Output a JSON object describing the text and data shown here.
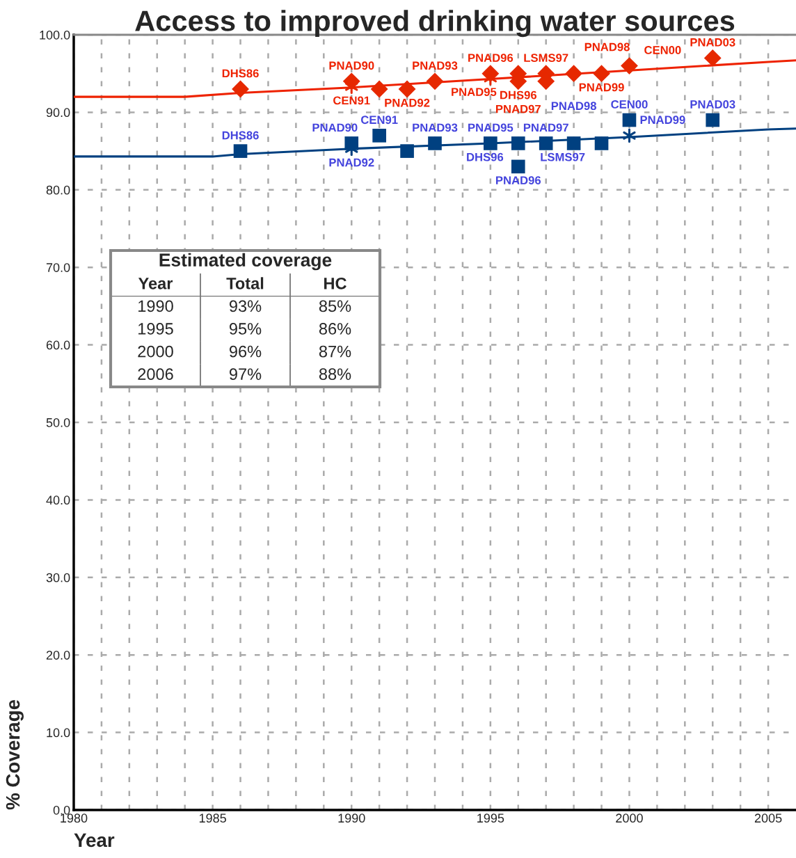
{
  "chart_data": {
    "type": "scatter",
    "title": "Access to improved drinking water sources",
    "xlabel": "Year",
    "ylabel": "% Coverage",
    "xlim": [
      1980,
      2006
    ],
    "xticks": [
      1980,
      {
        "value": 1981,
        "label": null
      },
      {
        "value": 1982,
        "label": null
      },
      {
        "value": 1983,
        "label": null
      },
      {
        "value": 1984,
        "label": null
      },
      1985,
      {
        "value": 1986,
        "label": null
      },
      {
        "value": 1987,
        "label": null
      },
      {
        "value": 1988,
        "label": null
      },
      {
        "value": 1989,
        "label": null
      },
      1990,
      {
        "value": 1991,
        "label": null
      },
      {
        "value": 1992,
        "label": null
      },
      {
        "value": 1993,
        "label": null
      },
      {
        "value": 1994,
        "label": null
      },
      1995,
      {
        "value": 1996,
        "label": null
      },
      {
        "value": 1997,
        "label": null
      },
      {
        "value": 1998,
        "label": null
      },
      {
        "value": 1999,
        "label": null
      },
      2000,
      {
        "value": 2001,
        "label": null
      },
      {
        "value": 2002,
        "label": null
      },
      {
        "value": 2003,
        "label": null
      },
      {
        "value": 2004,
        "label": null
      },
      2005
    ],
    "ylim": [
      0,
      100
    ],
    "yticks": [
      {
        "value": 0,
        "label": "0.0"
      },
      {
        "value": 10,
        "label": "10.0"
      },
      {
        "value": 20,
        "label": "20.0"
      },
      {
        "value": 30,
        "label": "30.0"
      },
      {
        "value": 40,
        "label": "40.0"
      },
      {
        "value": 50,
        "label": "50.0"
      },
      {
        "value": 60,
        "label": "60.0"
      },
      {
        "value": 70,
        "label": "70.0"
      },
      {
        "value": 80,
        "label": "80.0"
      },
      {
        "value": 90,
        "label": "90.0"
      },
      {
        "value": 100,
        "label": "100.0"
      }
    ],
    "grid": true,
    "series": [
      {
        "type": "line",
        "color": "#ee2200",
        "marker": "none",
        "x": [
          1980,
          1984,
          1986,
          1990,
          1995,
          2000,
          2005,
          2006
        ],
        "values": [
          92.0,
          92.0,
          92.5,
          93.2,
          94.3,
          95.4,
          96.5,
          96.7
        ]
      },
      {
        "type": "line",
        "color": "#004080",
        "marker": "none",
        "x": [
          1980,
          1985,
          1986,
          1990,
          1995,
          2000,
          2005,
          2006
        ],
        "values": [
          84.3,
          84.3,
          84.6,
          85.3,
          86.0,
          86.8,
          87.8,
          87.9
        ]
      },
      {
        "color": "#e62800",
        "marker": "diamond",
        "x": [
          1986,
          1990,
          1991,
          1992,
          1993,
          1995,
          1996,
          1996,
          1997,
          1997,
          1998,
          1999,
          2000,
          2003
        ],
        "values": [
          93,
          94,
          93,
          93,
          94,
          95,
          95,
          94,
          95,
          94,
          95,
          95,
          96,
          97
        ]
      },
      {
        "color": "#004080",
        "marker": "square",
        "x": [
          1986,
          1990,
          1991,
          1992,
          1993,
          1995,
          1996,
          1996,
          1997,
          1998,
          1999,
          2000,
          2003
        ],
        "values": [
          85,
          86,
          87,
          85,
          86,
          86,
          86,
          83,
          86,
          86,
          86,
          89,
          89
        ]
      },
      {
        "color": "#e62800",
        "marker": "cross",
        "x": [
          1990,
          1995
        ],
        "values": [
          93.3,
          94.4
        ]
      },
      {
        "color": "#004080",
        "marker": "cross",
        "x": [
          1990,
          2000
        ],
        "values": [
          85.3,
          87.0
        ]
      }
    ],
    "annotations": [
      {
        "text": "DHS86",
        "x": 1986,
        "y": 93
      },
      {
        "text": "PNAD90",
        "x": 1990,
        "y": 94
      },
      {
        "text": "PNAD93",
        "x": 1993,
        "y": 94
      },
      {
        "text": "PNAD96",
        "x": 1995,
        "y": 95
      },
      {
        "text": "LSMS97",
        "x": 1997,
        "y": 95
      },
      {
        "text": "PNAD99",
        "x": 1999,
        "y": 95
      },
      {
        "text": "DHS86",
        "x": 1986,
        "y": 85
      },
      {
        "text": "PNAD90",
        "x": 1990,
        "y": 86
      },
      {
        "text": "CEN91",
        "x": 1991,
        "y": 87
      },
      {
        "text": "PNAD95",
        "x": 1995,
        "y": 86
      },
      {
        "text": "PNAD97",
        "x": 1997,
        "y": 86
      },
      {
        "text": "LSMS97",
        "x": 1997,
        "y": 86
      },
      {
        "text": "CEN00",
        "x": 2000,
        "y": 89
      },
      {
        "text": "CEN91",
        "x": 1990,
        "y": 93.3
      },
      {
        "text": "PNAD92",
        "x": 1992,
        "y": 93
      },
      {
        "text": "DHS96",
        "x": 1996,
        "y": 94
      },
      {
        "text": "PNAD98",
        "x": 1998,
        "y": 95
      },
      {
        "text": "CEN00",
        "x": 2000,
        "y": 96
      },
      {
        "text": "PNAD03",
        "x": 2003,
        "y": 97
      },
      {
        "text": "PNAD92",
        "x": 1990,
        "y": 85.3
      },
      {
        "text": "PNAD93",
        "x": 1993,
        "y": 86
      },
      {
        "text": "PNAD96",
        "x": 1996,
        "y": 83
      },
      {
        "text": "DHS96",
        "x": 1996,
        "y": 86
      },
      {
        "text": "PNAD98",
        "x": 1998,
        "y": 86
      },
      {
        "text": "PNAD99",
        "x": 2000,
        "y": 87.0
      },
      {
        "text": "PNAD03",
        "x": 2003,
        "y": 89
      },
      {
        "text": "PNAD97",
        "x": 1996,
        "y": 95
      },
      {
        "text": "PNAD95",
        "x": 1995,
        "y": 94.4
      },
      "Estimated coverage",
      "Year",
      "Total",
      "HC",
      "1990",
      "93%",
      "85%",
      "1995",
      "95%",
      "86%",
      "2000",
      "96%",
      "87%",
      "2006",
      "97%",
      "88%"
    ]
  }
}
